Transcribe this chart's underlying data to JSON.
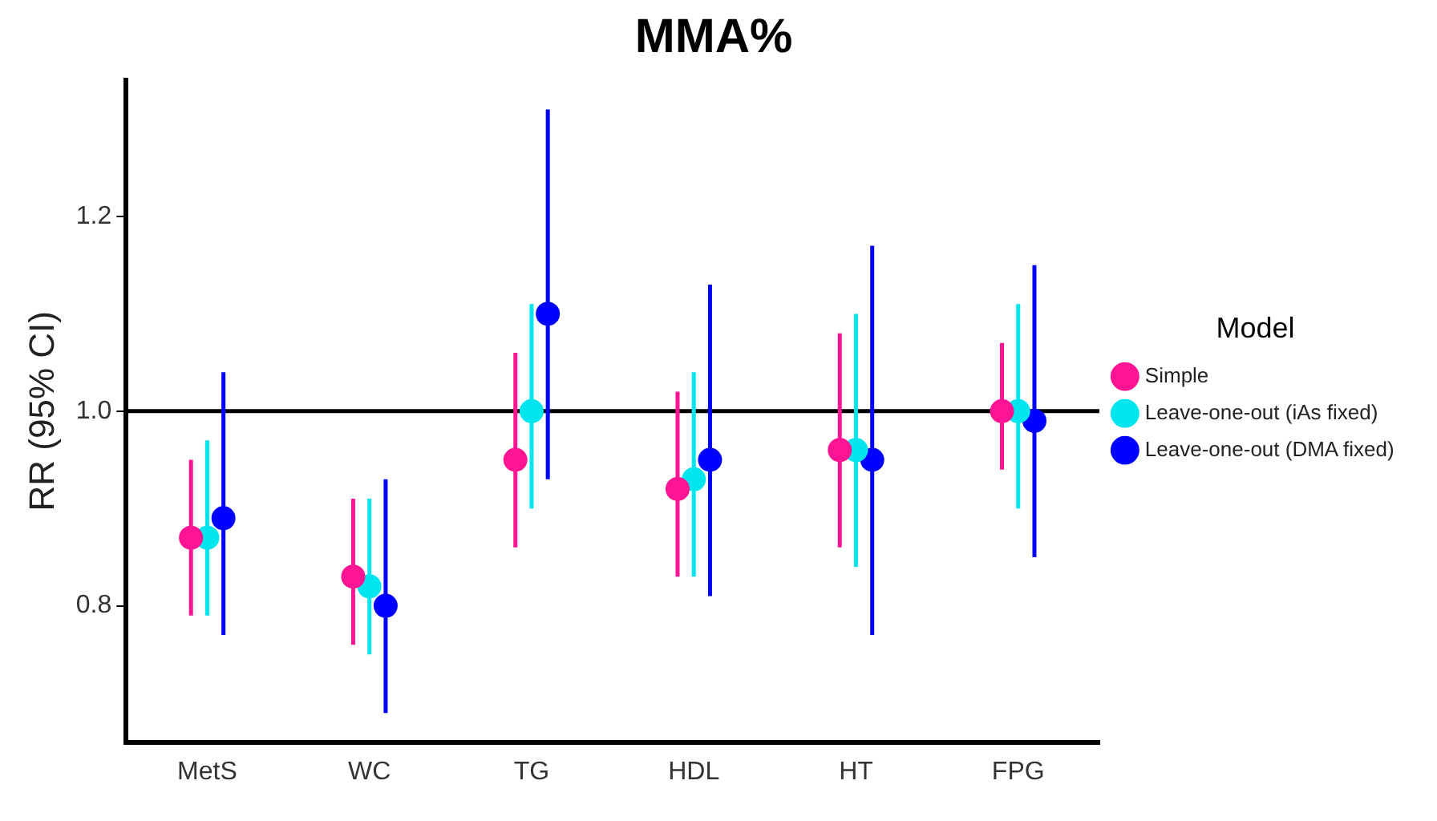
{
  "chart_data": {
    "type": "scatter",
    "title": "MMA%",
    "ylabel": "RR (95% CI)",
    "legend_title": "Model",
    "categories": [
      "MetS",
      "WC",
      "TG",
      "HDL",
      "HT",
      "FPG"
    ],
    "series": [
      {
        "name": "Simple",
        "color": "#ff1493",
        "values": [
          0.87,
          0.83,
          0.95,
          0.92,
          0.96,
          1.0
        ],
        "errors": [
          [
            0.79,
            0.95
          ],
          [
            0.76,
            0.91
          ],
          [
            0.86,
            1.06
          ],
          [
            0.83,
            1.02
          ],
          [
            0.86,
            1.08
          ],
          [
            0.94,
            1.07
          ]
        ]
      },
      {
        "name": "Leave-one-out (iAs fixed)",
        "color": "#00e5ee",
        "values": [
          0.87,
          0.82,
          1.0,
          0.93,
          0.96,
          1.0
        ],
        "errors": [
          [
            0.79,
            0.97
          ],
          [
            0.75,
            0.91
          ],
          [
            0.9,
            1.11
          ],
          [
            0.83,
            1.04
          ],
          [
            0.84,
            1.1
          ],
          [
            0.9,
            1.11
          ]
        ]
      },
      {
        "name": "Leave-one-out (DMA fixed)",
        "color": "#0000ff",
        "values": [
          0.89,
          0.8,
          1.1,
          0.95,
          0.95,
          0.99
        ],
        "errors": [
          [
            0.77,
            1.04
          ],
          [
            0.69,
            0.93
          ],
          [
            0.93,
            1.31
          ],
          [
            0.81,
            1.13
          ],
          [
            0.77,
            1.17
          ],
          [
            0.85,
            1.15
          ]
        ]
      }
    ],
    "ylim": [
      0.66,
      1.34
    ],
    "yticks": [
      {
        "value": 0.8,
        "label": "0.8"
      },
      {
        "value": 1.0,
        "label": "1.0"
      },
      {
        "value": 1.2,
        "label": "1.2"
      }
    ],
    "ref_lines": [
      {
        "axis": "y",
        "value": 1.0,
        "color": "#000000"
      }
    ],
    "marker": "circle",
    "grid": false,
    "legend": "right"
  }
}
